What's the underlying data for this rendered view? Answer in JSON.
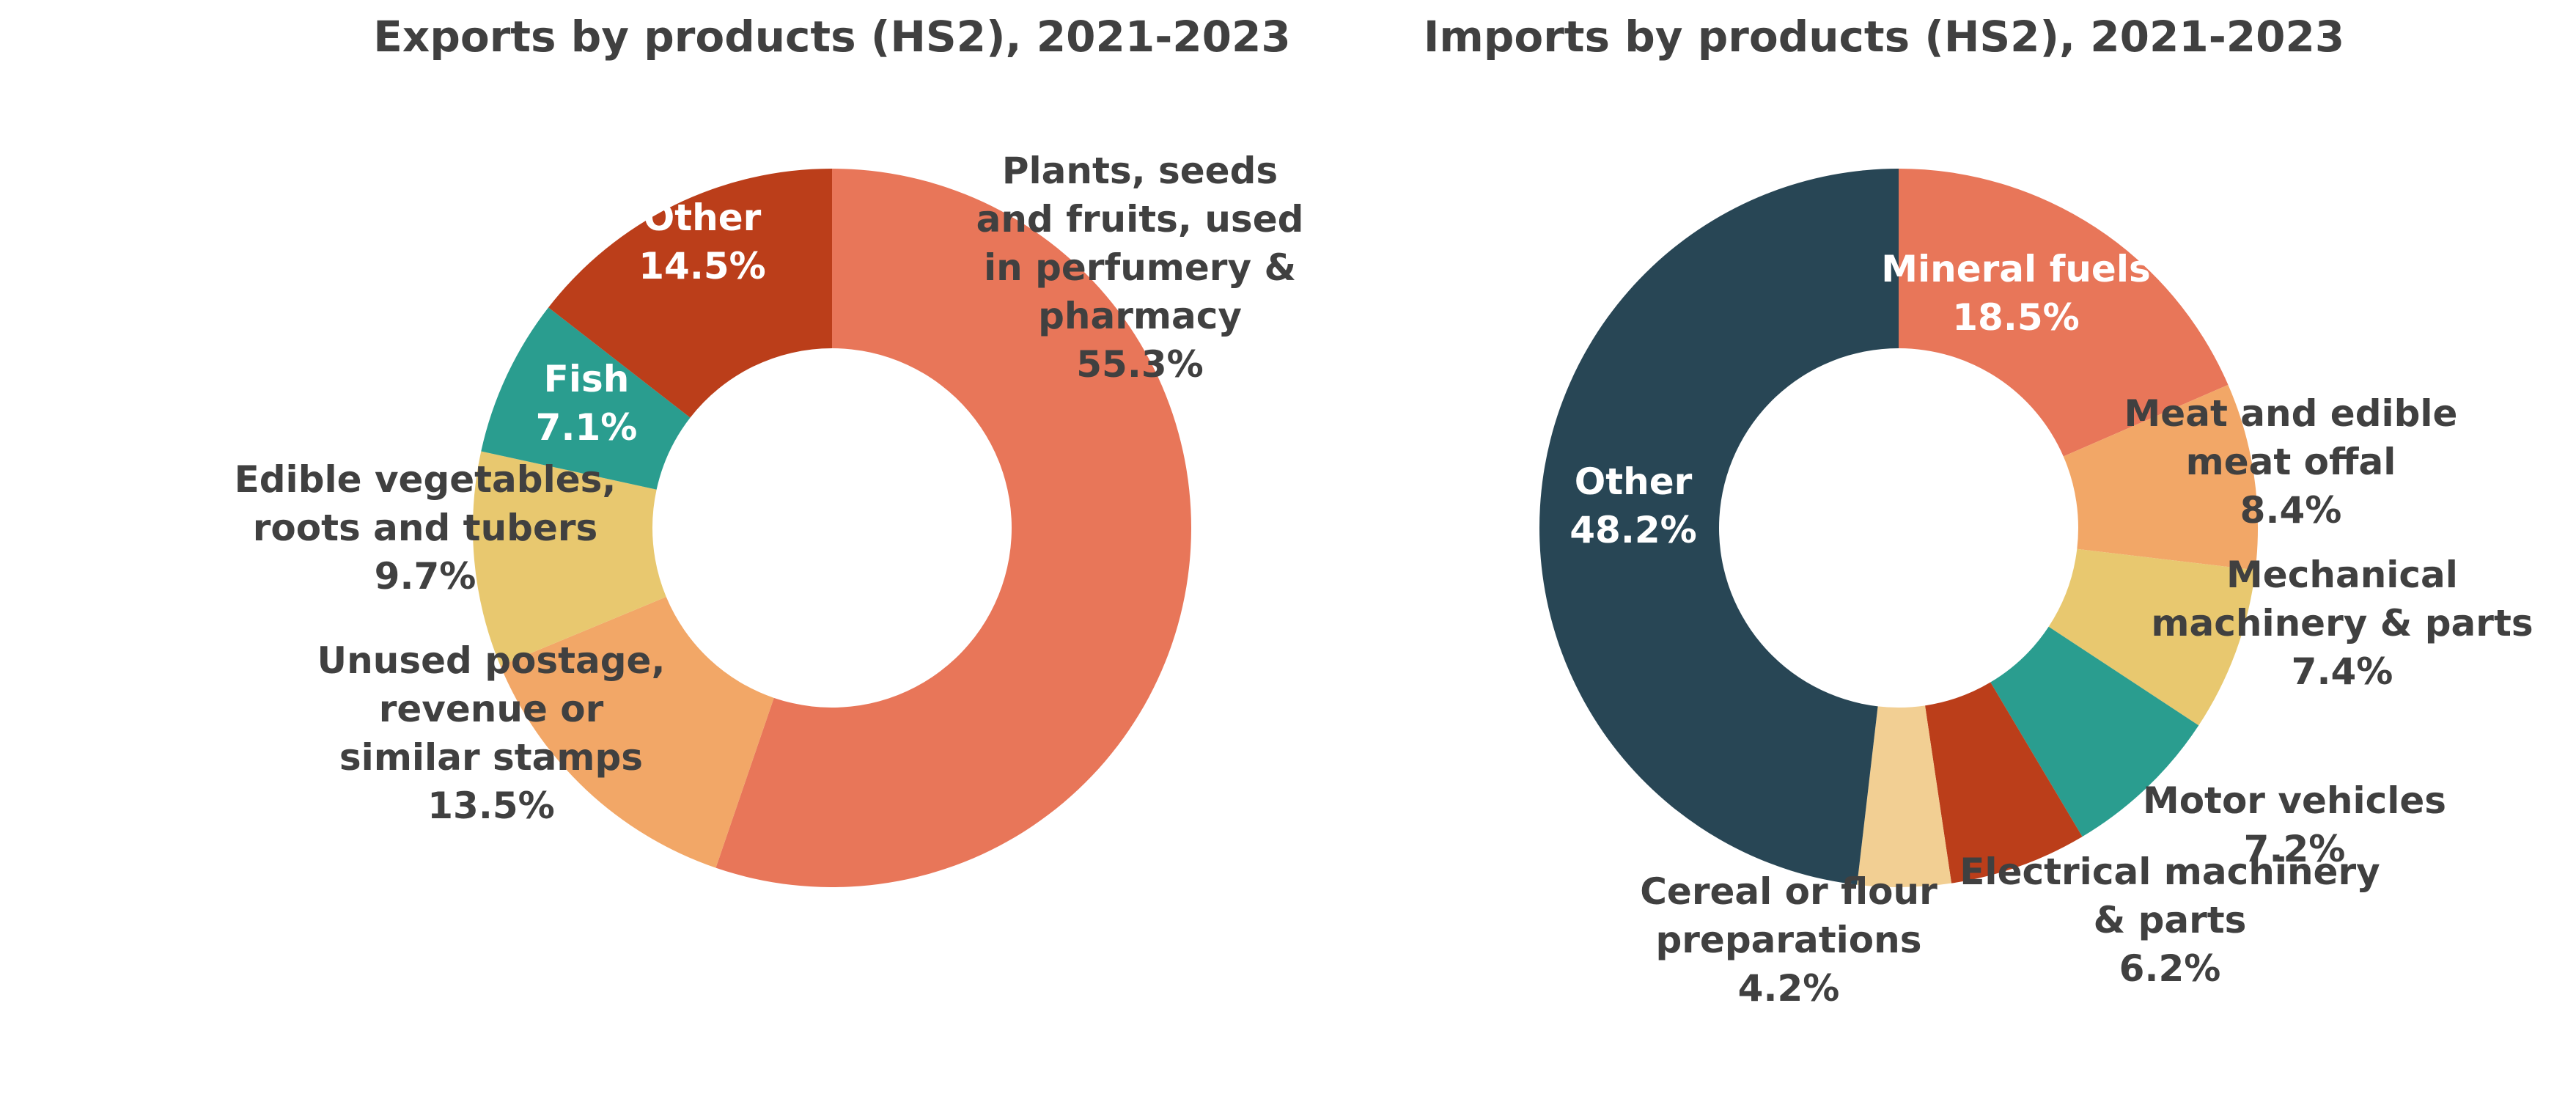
{
  "chart_data": [
    {
      "type": "pie",
      "variant": "donut",
      "title": "Exports by products (HS2), 2021-2023",
      "slices": [
        {
          "label": "Plants, seeds and fruits, used in perfumery & pharmacy",
          "value": 55.3,
          "display": "55.3%",
          "color": "#e87659",
          "label_lines": [
            "Plants, seeds",
            "and fruits, used",
            "in perfumery &",
            "pharmacy",
            "55.3%"
          ],
          "label_color": "#404040"
        },
        {
          "label": "Unused postage, revenue or similar stamps",
          "value": 13.5,
          "display": "13.5%",
          "color": "#f2a767",
          "label_lines": [
            "Unused postage,",
            "revenue or",
            "similar stamps",
            "13.5%"
          ],
          "label_color": "#404040"
        },
        {
          "label": "Edible vegetables, roots and tubers",
          "value": 9.7,
          "display": "9.7%",
          "color": "#e8c86f",
          "label_lines": [
            "Edible vegetables,",
            "roots and tubers",
            "9.7%"
          ],
          "label_color": "#404040"
        },
        {
          "label": "Fish",
          "value": 7.1,
          "display": "7.1%",
          "color": "#2a9d8f",
          "label_lines": [
            "Fish",
            "7.1%"
          ],
          "label_color": "#ffffff"
        },
        {
          "label": "Other",
          "value": 14.5,
          "display": "14.5%",
          "color": "#bb3e1a",
          "label_lines": [
            "Other",
            "14.5%"
          ],
          "label_color": "#ffffff"
        }
      ]
    },
    {
      "type": "pie",
      "variant": "donut",
      "title": "Imports by products (HS2), 2021-2023",
      "slices": [
        {
          "label": "Mineral fuels",
          "value": 18.5,
          "display": "18.5%",
          "color": "#e87659",
          "label_lines": [
            "Mineral fuels",
            "18.5%"
          ],
          "label_color": "#ffffff"
        },
        {
          "label": "Meat and edible meat offal",
          "value": 8.4,
          "display": "8.4%",
          "color": "#f2a767",
          "label_lines": [
            "Meat and edible",
            "meat offal",
            "8.4%"
          ],
          "label_color": "#404040"
        },
        {
          "label": "Mechanical machinery & parts",
          "value": 7.4,
          "display": "7.4%",
          "color": "#e8c86f",
          "label_lines": [
            "Mechanical",
            "machinery & parts",
            "7.4%"
          ],
          "label_color": "#404040"
        },
        {
          "label": "Motor vehicles",
          "value": 7.2,
          "display": "7.2%",
          "color": "#2a9d8f",
          "label_lines": [
            "Motor vehicles",
            "7.2%"
          ],
          "label_color": "#404040"
        },
        {
          "label": "Electrical machinery & parts",
          "value": 6.2,
          "display": "6.2%",
          "color": "#bb3e1a",
          "label_lines": [
            "Electrical machinery",
            "& parts",
            "6.2%"
          ],
          "label_color": "#404040"
        },
        {
          "label": "Cereal or flour preparations",
          "value": 4.2,
          "display": "4.2%",
          "color": "#f2cf93",
          "label_lines": [
            "Cereal or flour",
            "preparations",
            "4.2%"
          ],
          "label_color": "#404040"
        },
        {
          "label": "Other",
          "value": 48.2,
          "display": "48.2%",
          "color": "#284655",
          "label_lines": [
            "Other",
            "48.2%"
          ],
          "label_color": "#ffffff"
        }
      ]
    }
  ]
}
